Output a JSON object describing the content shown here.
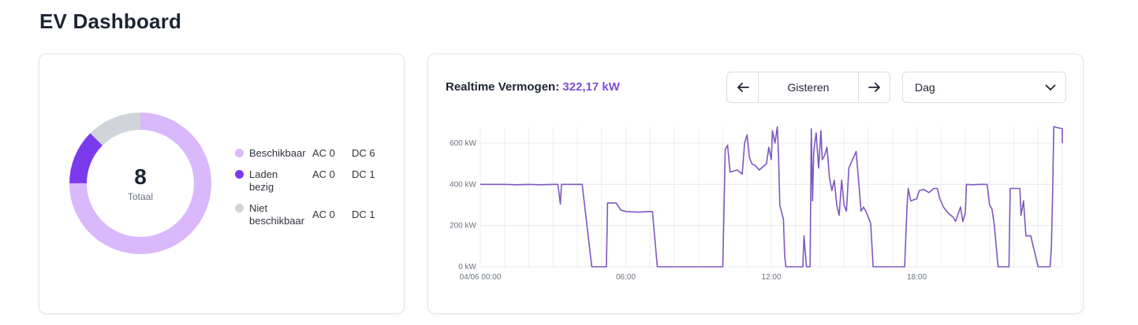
{
  "page": {
    "title": "EV Dashboard"
  },
  "status_card": {
    "total_value": "8",
    "total_label": "Totaal",
    "legend": [
      {
        "name": "Beschikbaar",
        "ac": "AC 0",
        "dc": "DC 6",
        "color": "#d9b8fb"
      },
      {
        "name": "Laden bezig",
        "ac": "AC 0",
        "dc": "DC 1",
        "color": "#7c3aed"
      },
      {
        "name": "Niet beschikbaar",
        "ac": "AC 0",
        "dc": "DC 1",
        "color": "#d1d5db"
      }
    ]
  },
  "power_card": {
    "title_label": "Realtime Vermogen:",
    "title_value": "322,17 kW",
    "period_label": "Gisteren",
    "prev_icon": "arrow-left-icon",
    "next_icon": "arrow-right-icon",
    "range_selected": "Dag",
    "accent_color": "#7e57c2"
  },
  "chart_data": [
    {
      "type": "pie",
      "categories": [
        "Beschikbaar",
        "Laden bezig",
        "Niet beschikbaar"
      ],
      "values": [
        6,
        1,
        1
      ],
      "colors": [
        "#d9b8fb",
        "#7c3aed",
        "#d1d5db"
      ],
      "hole": true
    },
    {
      "type": "line",
      "x_unit": "hours",
      "xticks": [
        {
          "x": 0,
          "label": "04/06 00:00"
        },
        {
          "x": 6,
          "label": "06:00"
        },
        {
          "x": 12,
          "label": "12:00"
        },
        {
          "x": 18,
          "label": "18:00"
        }
      ],
      "ylabel": "",
      "yticks": [
        {
          "y": 0,
          "label": "0 kW"
        },
        {
          "y": 200,
          "label": "200 kW"
        },
        {
          "y": 400,
          "label": "400 kW"
        },
        {
          "y": 600,
          "label": "600 kW"
        }
      ],
      "xlim": [
        0,
        24
      ],
      "ylim": [
        0,
        680
      ],
      "grid": true,
      "series": [
        {
          "color": "#7e57c2",
          "points": [
            [
              0.0,
              400
            ],
            [
              1.0,
              400
            ],
            [
              1.5,
              398
            ],
            [
              2.0,
              400
            ],
            [
              2.5,
              398
            ],
            [
              3.0,
              400
            ],
            [
              3.2,
              400
            ],
            [
              3.3,
              305
            ],
            [
              3.35,
              400
            ],
            [
              4.2,
              400
            ],
            [
              4.4,
              200
            ],
            [
              4.6,
              0
            ],
            [
              5.2,
              0
            ],
            [
              5.25,
              310
            ],
            [
              5.6,
              310
            ],
            [
              5.8,
              275
            ],
            [
              6.0,
              268
            ],
            [
              6.5,
              265
            ],
            [
              7.0,
              268
            ],
            [
              7.1,
              268
            ],
            [
              7.3,
              0
            ],
            [
              10.0,
              0
            ],
            [
              10.1,
              570
            ],
            [
              10.2,
              590
            ],
            [
              10.3,
              460
            ],
            [
              10.6,
              470
            ],
            [
              10.8,
              450
            ],
            [
              10.9,
              600
            ],
            [
              11.0,
              640
            ],
            [
              11.1,
              530
            ],
            [
              11.2,
              500
            ],
            [
              11.35,
              490
            ],
            [
              11.5,
              470
            ],
            [
              11.6,
              480
            ],
            [
              11.8,
              500
            ],
            [
              11.9,
              580
            ],
            [
              12.0,
              520
            ],
            [
              12.05,
              660
            ],
            [
              12.15,
              600
            ],
            [
              12.25,
              680
            ],
            [
              12.3,
              540
            ],
            [
              12.35,
              300
            ],
            [
              12.5,
              230
            ],
            [
              12.55,
              60
            ],
            [
              12.6,
              0
            ],
            [
              13.3,
              0
            ],
            [
              13.35,
              150
            ],
            [
              13.45,
              0
            ],
            [
              13.6,
              0
            ],
            [
              13.65,
              670
            ],
            [
              13.7,
              320
            ],
            [
              13.75,
              560
            ],
            [
              13.85,
              650
            ],
            [
              13.95,
              480
            ],
            [
              14.05,
              660
            ],
            [
              14.1,
              520
            ],
            [
              14.2,
              540
            ],
            [
              14.3,
              580
            ],
            [
              14.4,
              430
            ],
            [
              14.5,
              370
            ],
            [
              14.6,
              420
            ],
            [
              14.7,
              300
            ],
            [
              14.8,
              250
            ],
            [
              14.9,
              420
            ],
            [
              15.0,
              300
            ],
            [
              15.1,
              270
            ],
            [
              15.2,
              480
            ],
            [
              15.35,
              520
            ],
            [
              15.5,
              560
            ],
            [
              15.6,
              420
            ],
            [
              15.7,
              270
            ],
            [
              15.8,
              290
            ],
            [
              15.9,
              270
            ],
            [
              16.1,
              210
            ],
            [
              16.2,
              0
            ],
            [
              17.5,
              0
            ],
            [
              17.6,
              300
            ],
            [
              17.65,
              380
            ],
            [
              17.75,
              320
            ],
            [
              18.0,
              330
            ],
            [
              18.1,
              370
            ],
            [
              18.3,
              375
            ],
            [
              18.5,
              360
            ],
            [
              18.7,
              380
            ],
            [
              18.85,
              380
            ],
            [
              18.95,
              330
            ],
            [
              19.1,
              290
            ],
            [
              19.3,
              260
            ],
            [
              19.5,
              240
            ],
            [
              19.6,
              220
            ],
            [
              19.8,
              290
            ],
            [
              19.9,
              220
            ],
            [
              20.0,
              260
            ],
            [
              20.05,
              400
            ],
            [
              20.3,
              398
            ],
            [
              20.6,
              400
            ],
            [
              20.9,
              400
            ],
            [
              21.0,
              300
            ],
            [
              21.1,
              280
            ],
            [
              21.2,
              200
            ],
            [
              21.35,
              0
            ],
            [
              21.8,
              0
            ],
            [
              21.85,
              380
            ],
            [
              22.1,
              380
            ],
            [
              22.25,
              380
            ],
            [
              22.3,
              250
            ],
            [
              22.4,
              320
            ],
            [
              22.5,
              150
            ],
            [
              22.7,
              150
            ],
            [
              22.8,
              100
            ],
            [
              23.0,
              0
            ],
            [
              23.5,
              0
            ],
            [
              23.55,
              100
            ],
            [
              23.6,
              350
            ],
            [
              23.65,
              680
            ],
            [
              24.0,
              670
            ],
            [
              24.0,
              600
            ]
          ]
        }
      ]
    }
  ]
}
